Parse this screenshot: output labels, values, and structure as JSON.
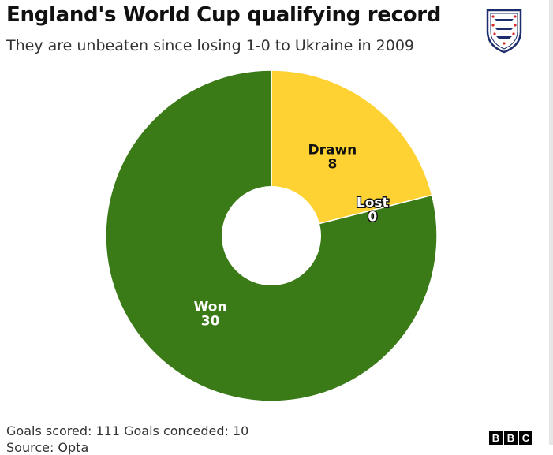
{
  "title": "England's World Cup qualifying record",
  "subtitle": "They are unbeaten since losing 1-0 to Ukraine in 2009",
  "footnote": "Goals scored: 111 Goals conceded: 10",
  "source": "Source: Opta",
  "brand": {
    "letters": [
      "B",
      "B",
      "C"
    ]
  },
  "crest_icon": "three-lions-crest-icon",
  "chart_data": {
    "type": "pie",
    "donut": true,
    "categories": [
      "Drawn",
      "Lost",
      "Won"
    ],
    "values": [
      8,
      0,
      30
    ],
    "colors": [
      "#fdd232",
      "#fdd232",
      "#3a7a17"
    ],
    "label_colors": [
      "#111111",
      "#ffffff",
      "#ffffff"
    ],
    "title": "England's World Cup qualifying record",
    "legend": "none"
  }
}
